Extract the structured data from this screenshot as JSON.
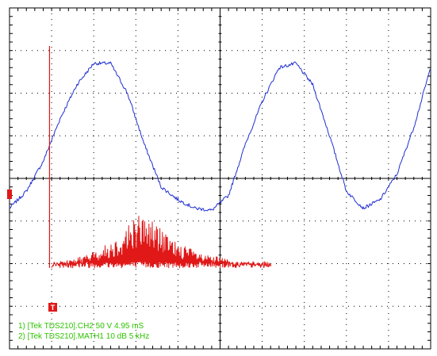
{
  "chart_data": {
    "type": "line",
    "grid": true,
    "grid_divisions": {
      "x": 10,
      "y": 8
    },
    "annotations": [
      "1) [Tek TDS210].CH2  50  V   4.95 mS",
      "2) [Tek TDS210].MATH1  10  dB   5 kHz"
    ],
    "series": [
      {
        "channel": "CH2",
        "color": "#1f2fd0",
        "x_div": [
          0.0,
          0.4,
          0.8,
          1.2,
          1.6,
          2.0,
          2.4,
          2.8,
          3.2,
          3.6,
          4.0,
          4.4,
          4.8,
          5.2,
          5.6,
          6.0,
          6.4,
          6.8,
          7.2,
          7.6,
          8.0,
          8.4,
          8.8,
          9.2,
          9.6,
          10.0
        ],
        "y_div": [
          -0.7,
          -0.3,
          0.4,
          1.4,
          2.2,
          2.7,
          2.7,
          2.0,
          0.8,
          -0.2,
          -0.5,
          -0.7,
          -0.75,
          -0.4,
          0.8,
          1.8,
          2.6,
          2.7,
          2.2,
          1.0,
          -0.3,
          -0.7,
          -0.5,
          0.1,
          1.2,
          2.6
        ]
      },
      {
        "channel": "MATH1",
        "color": "#e01818",
        "x_div": [
          1.0,
          1.4,
          1.8,
          2.2,
          2.6,
          3.0,
          3.4,
          3.8,
          4.2,
          4.6,
          5.0,
          5.4,
          5.8,
          6.2
        ],
        "y_div": [
          -2.0,
          -1.9,
          -1.8,
          -1.6,
          -1.35,
          -0.8,
          -0.95,
          -1.4,
          -1.6,
          -1.8,
          -1.85,
          -1.95,
          -2.0,
          -2.0
        ]
      }
    ],
    "markers": {
      "trigger": "T"
    }
  }
}
